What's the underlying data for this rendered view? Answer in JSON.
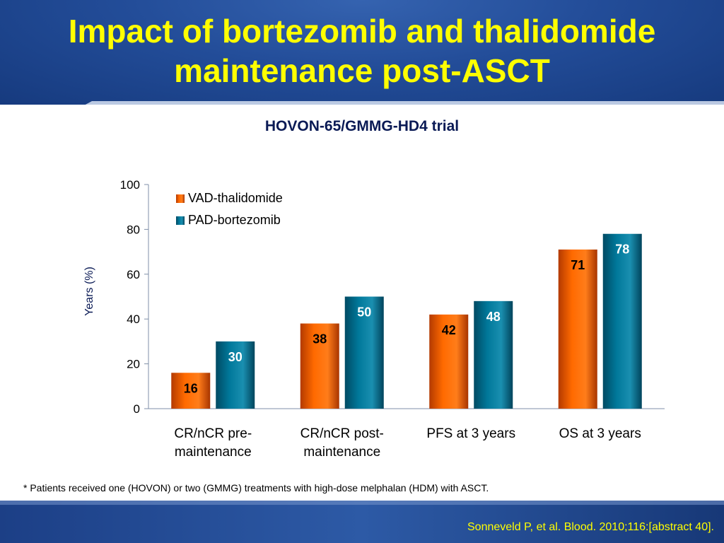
{
  "slide": {
    "title_line1": "Impact of bortezomib and thalidomide",
    "title_line2": "maintenance post-ASCT",
    "footnote": "* Patients received one (HOVON) or two (GMMG) treatments with high-dose melphalan (HDM) with ASCT.",
    "citation": "Sonneveld P, et al. Blood. 2010;116:[abstract 40].",
    "colors": {
      "title": "#ffff00",
      "header": "#234d99",
      "citation": "#ffff00"
    }
  },
  "chart_data": {
    "type": "bar",
    "title": "HOVON-65/GMMG-HD4 trial",
    "ylabel": "Years (%)",
    "xlabel": "",
    "ylim": [
      0,
      100
    ],
    "yticks": [
      "0",
      "20",
      "40",
      "60",
      "80",
      "100"
    ],
    "categories": [
      [
        "CR/nCR pre-",
        "maintenance"
      ],
      [
        "CR/nCR post-",
        "maintenance"
      ],
      [
        "PFS at 3 years"
      ],
      [
        "OS at 3 years"
      ]
    ],
    "series": [
      {
        "name": "VAD-thalidomide",
        "values": [
          16,
          38,
          42,
          71
        ],
        "color": "#ff6a00",
        "label_color": "#000000"
      },
      {
        "name": "PAD-bortezomib",
        "values": [
          30,
          50,
          48,
          78
        ],
        "color": "#00789a",
        "label_color": "#ffffff"
      }
    ],
    "legend": "top-left",
    "grid": false
  }
}
